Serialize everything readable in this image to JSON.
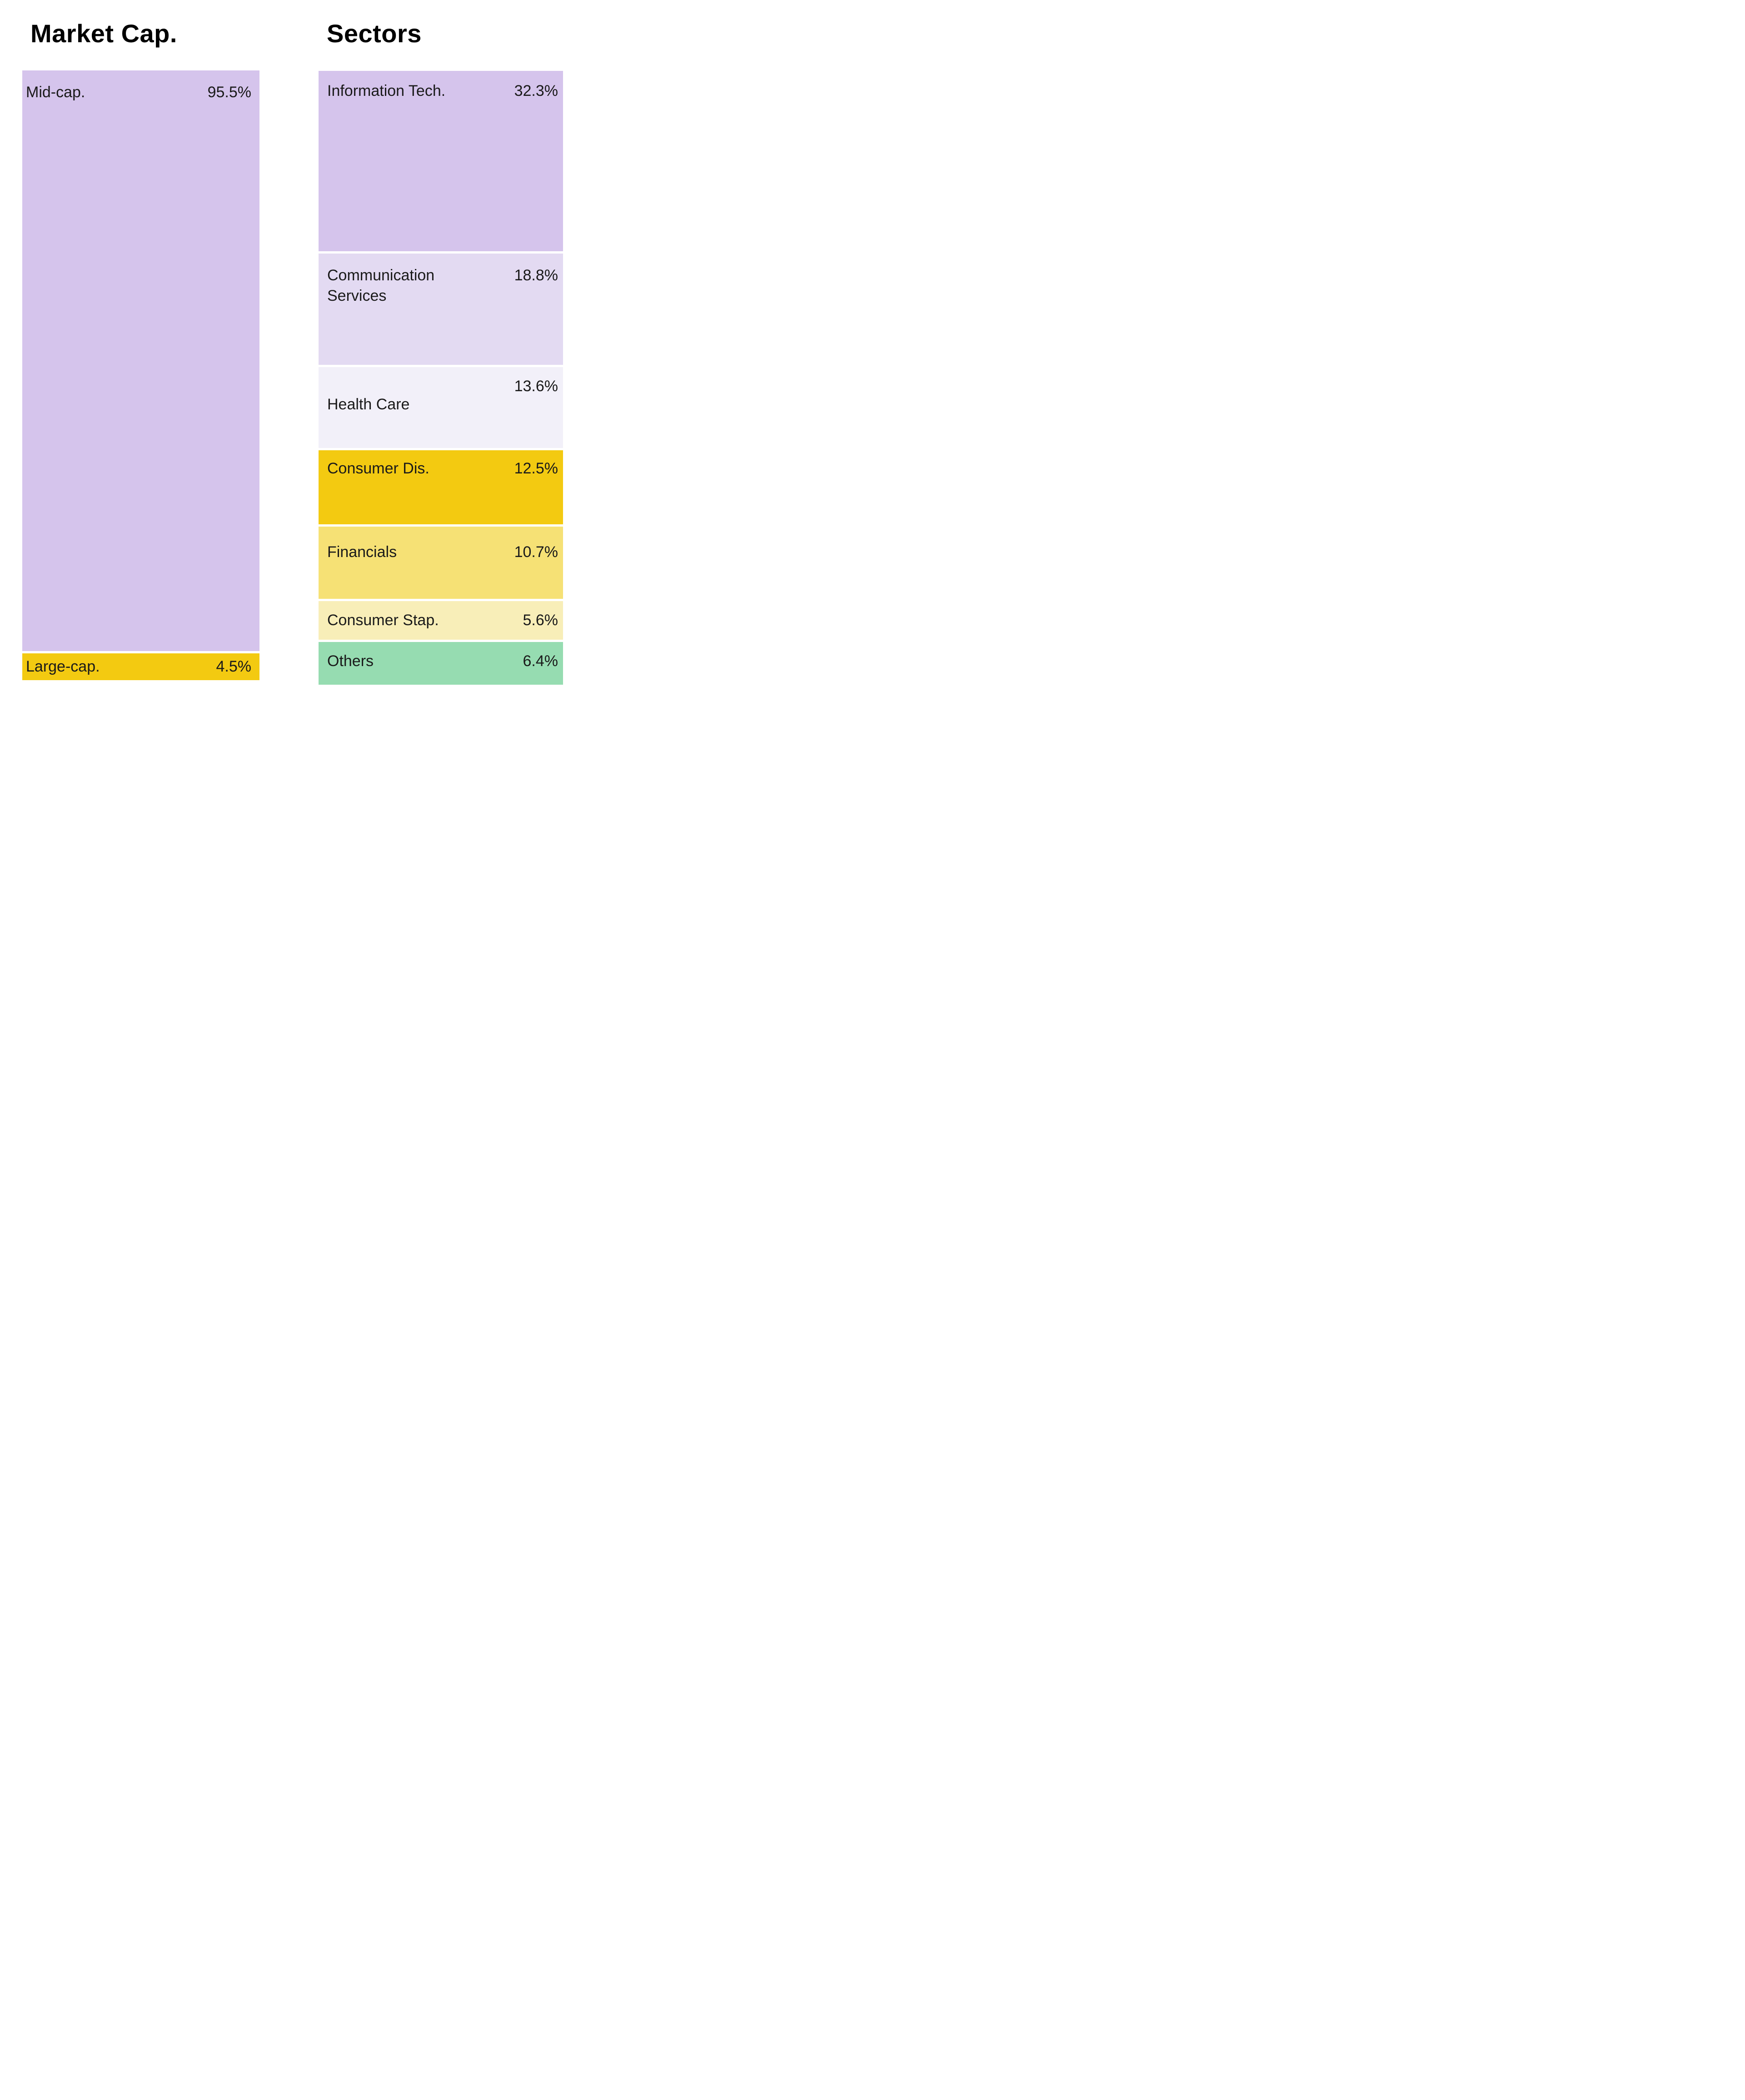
{
  "page": {
    "background": "#ffffff",
    "text_color": "#1a1a1a",
    "separator_color": "#ffffff"
  },
  "chart_data": [
    {
      "type": "bar",
      "stacked": true,
      "orientation": "vertical",
      "title": "Market Cap.",
      "legend_position": "none",
      "grid": false,
      "total": 100,
      "segments": [
        {
          "label": "Mid-cap.",
          "pct_label": "95.5%",
          "value": 95.5,
          "color": "#d5c4ec"
        },
        {
          "label": "Large-cap.",
          "pct_label": "4.5%",
          "value": 4.5,
          "color": "#f3ca11"
        }
      ]
    },
    {
      "type": "bar",
      "stacked": true,
      "orientation": "vertical",
      "title": "Sectors",
      "legend_position": "none",
      "grid": false,
      "total": 99.9,
      "segments": [
        {
          "label": "Information Tech.",
          "pct_label": "32.3%",
          "value": 32.3,
          "color": "#d5c4ec"
        },
        {
          "label": "Communication Services",
          "pct_label": "18.8%",
          "value": 18.8,
          "color": "#e3daf2"
        },
        {
          "label": "Health Care",
          "pct_label": "13.6%",
          "value": 13.6,
          "color": "#f2f0f9"
        },
        {
          "label": "Consumer Dis.",
          "pct_label": "12.5%",
          "value": 12.5,
          "color": "#f3ca11"
        },
        {
          "label": "Financials",
          "pct_label": "10.7%",
          "value": 10.7,
          "color": "#f6e175"
        },
        {
          "label": "Consumer Stap.",
          "pct_label": "5.6%",
          "value": 5.6,
          "color": "#f8eeb8"
        },
        {
          "label": "Others",
          "pct_label": "6.4%",
          "value": 6.4,
          "color": "#96dcb1"
        }
      ]
    }
  ]
}
